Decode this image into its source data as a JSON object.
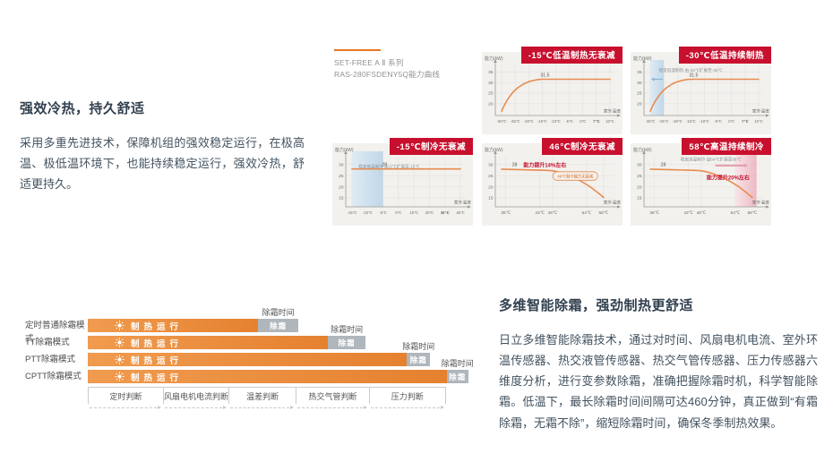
{
  "page": {
    "background": "#ffffff"
  },
  "colors": {
    "brand_red": "#C8102E",
    "accent_orange": "#E87722",
    "curve_orange": "#E78C4F",
    "chart_bg": "#F2F1EE",
    "grid": "#E0DED9",
    "axis": "#9C9A94",
    "tick_text": "#6b6b66",
    "bar_orange_start": "#F09B4F",
    "bar_orange_end": "#E5812F",
    "defrost_gray": "#AFB6BC",
    "band_blue": "#BCD6EA",
    "band_pink": "#EFB9C4",
    "text_dark": "#32414f",
    "text_body": "#42525f"
  },
  "intro": {
    "title": "强效冷热，持久舒适",
    "body": "采用多重先进技术，保障机组的强效稳定运行，在极高温、极低温环境下，也能持续稳定运行，强效冷热，舒适更持久。"
  },
  "series_label": {
    "line1": "SET-FREE A Ⅱ 系列",
    "line2": "RAS-280FSDENY5Q能力曲线"
  },
  "defrost": {
    "title": "多维智能除霜，强劲制热更舒适",
    "body": "日立多维智能除霜技术，通过对时间、风扇电机电流、室外环温传感器、热交液管传感器、热交气管传感器、压力传感器六维度分析，进行变参数除霜，准确把握除霜时机，科学智能除霜。低温下，最长除霜时间间隔可达460分钟，真正做到“有霜除霜，无霜不除”，缩短除霜时间，确保冬季制热效果。",
    "timeline": {
      "run_label": "制热运行",
      "defrost_label": "除霜",
      "time_label": "除霜时间",
      "rows": [
        {
          "mode": "定时普通除霜模式",
          "run": 0.448,
          "defrost": 0.107
        },
        {
          "mode": "TT除霜模式",
          "run": 0.633,
          "defrost": 0.098
        },
        {
          "mode": "PTT除霜模式",
          "run": 0.84,
          "defrost": 0.062
        },
        {
          "mode": "CPTT除霜模式",
          "run": 0.945,
          "defrost": 0.057
        }
      ],
      "axis_end": 0.943,
      "axis": [
        {
          "label": "定时判断",
          "w": 21.0
        },
        {
          "label": "风扇电机电流判断",
          "w": 18.3
        },
        {
          "label": "温差判断",
          "w": 18.8
        },
        {
          "label": "热交气管判断",
          "w": 20.4
        },
        {
          "label": "压力判断",
          "w": 21.5
        }
      ]
    }
  },
  "chart_data": [
    {
      "type": "line",
      "grid_pos": {
        "row": 0,
        "col": 1
      },
      "badge": "-15℃低温制热无衰减",
      "ylabel": "能力(kW)",
      "xlabel": "室外温度",
      "x_scale": "index",
      "xticks": [
        "-30℃",
        "-25℃",
        "-20℃",
        "-15℃",
        "-10℃",
        "-5℃",
        "0℃",
        "7℃",
        "10℃"
      ],
      "xtick_values": [
        -30,
        -25,
        -20,
        -15,
        -10,
        -5,
        0,
        7,
        10
      ],
      "bold_xticks": [
        "7℃"
      ],
      "ylim": [
        14.5,
        38
      ],
      "yticks": [
        35,
        30,
        25,
        20
      ],
      "series": [
        {
          "name": "制热能力",
          "x": [
            -30,
            -29,
            -28,
            -27,
            -26,
            -25,
            -24,
            -23,
            -22,
            -21,
            -20,
            -19,
            -18,
            -17,
            -16,
            -15,
            10
          ],
          "y": [
            16.5,
            19.3,
            21.6,
            23.5,
            25.1,
            26.4,
            27.5,
            28.4,
            29.2,
            29.8,
            30.3,
            30.7,
            31.0,
            31.25,
            31.4,
            31.5,
            31.5
          ]
        }
      ],
      "value_label": {
        "text": "31.5",
        "fx": 0.4,
        "v": 31.5
      }
    },
    {
      "type": "line",
      "grid_pos": {
        "row": 0,
        "col": 2
      },
      "badge": "-30℃低温持续制热",
      "ylabel": "能力(kW)",
      "xlabel": "室外温度",
      "x_scale": "index",
      "xticks": [
        "-30℃",
        "-25℃",
        "-20℃",
        "-15℃",
        "-10℃",
        "-5℃",
        "0℃",
        "7℃",
        "10℃"
      ],
      "xtick_values": [
        -30,
        -25,
        -20,
        -15,
        -10,
        -5,
        0,
        7,
        10
      ],
      "bold_xticks": [
        "7℃"
      ],
      "ylim": [
        14.5,
        38
      ],
      "yticks": [
        35,
        30,
        25,
        20
      ],
      "series": [
        {
          "name": "制热能力",
          "x": [
            -30,
            -29,
            -28,
            -27,
            -26,
            -25,
            -24,
            -23,
            -22,
            -21,
            -20,
            -19,
            -18,
            -17,
            -16,
            -15,
            10
          ],
          "y": [
            16.5,
            19.3,
            21.6,
            23.5,
            25.1,
            26.4,
            27.5,
            28.4,
            29.2,
            29.8,
            30.3,
            30.7,
            31.0,
            31.25,
            31.4,
            31.5,
            31.5
          ]
        }
      ],
      "value_label": {
        "text": "31.5",
        "fx": 0.4,
        "v": 31.5
      },
      "band": {
        "x0": -30,
        "x1": -25,
        "kind": "blue"
      },
      "notes": [
        {
          "text": "稳定低温制热 由-25℃扩展至-30℃",
          "fx": 0.08,
          "fy": 0.24,
          "color": "#8a9094",
          "size": 4.6
        }
      ],
      "arrows": [
        {
          "fx0": 0.115,
          "v0": 31.5,
          "fx1": 0.008,
          "v1": 31.5,
          "color": "#8FB3D1",
          "w": 1.2
        }
      ]
    },
    {
      "type": "line",
      "grid_pos": {
        "row": 1,
        "col": 0
      },
      "badge": "-15℃制冷无衰减",
      "ylabel": "能力(kW)",
      "xlabel": "室外温度",
      "x_scale": "index",
      "xticks": [
        "-15℃",
        "-10℃",
        "-5℃",
        "0℃",
        "10℃",
        "20℃",
        "35℃",
        "46℃"
      ],
      "xtick_values": [
        -15,
        -10,
        -5,
        0,
        10,
        20,
        35,
        46
      ],
      "bold_xticks": [
        "35℃"
      ],
      "ylim": [
        11,
        33.5
      ],
      "yticks": [
        30,
        25,
        20,
        15
      ],
      "series": [
        {
          "name": "制冷能力",
          "x": [
            -15,
            46
          ],
          "y": [
            28,
            28
          ]
        }
      ],
      "value_label": {
        "text": "28",
        "fx": 0.3,
        "v": 28
      },
      "band": {
        "x0": -15,
        "x1": -5,
        "kind": "blue"
      },
      "notes": [
        {
          "text": "稳定低温制冷 由-5℃扩展至-15℃",
          "fx": 0.06,
          "fy": 0.3,
          "color": "#8a9094",
          "size": 4.6
        }
      ]
    },
    {
      "type": "line",
      "grid_pos": {
        "row": 1,
        "col": 1
      },
      "badge": "46℃制冷无衰减",
      "ylabel": "能力(kW)",
      "xlabel": "室外温度",
      "x_scale": "value",
      "xlim": [
        34,
        59.5
      ],
      "xticks": [
        "35℃",
        "43℃",
        "46℃",
        "54℃",
        "58℃"
      ],
      "xtick_values": [
        35,
        43,
        46,
        54,
        58
      ],
      "ylim": [
        11,
        33.5
      ],
      "yticks": [
        30,
        25,
        20,
        15
      ],
      "series": [
        {
          "name": "制冷能力",
          "x": [
            34,
            36,
            38,
            40,
            42,
            44,
            46,
            47.5,
            49,
            50.5,
            52,
            53.5,
            55,
            56.5,
            58
          ],
          "y": [
            27.9,
            27.8,
            27.7,
            27.6,
            27.5,
            27.4,
            27.2,
            26.6,
            25.7,
            24.6,
            23.2,
            21.6,
            19.8,
            17.6,
            15.2
          ]
        }
      ],
      "value_label": {
        "text": "28",
        "fx": 0.12,
        "v": 28
      },
      "notes": [
        {
          "text": "能力提升14%左右",
          "fx": 0.2,
          "fy": 0.29,
          "color": "#C8102E",
          "bold": true,
          "size": 6
        }
      ],
      "pill": {
        "text": "46℃制冷能力无衰减",
        "fx": 0.68,
        "fy": 0.4
      }
    },
    {
      "type": "line",
      "grid_pos": {
        "row": 1,
        "col": 2
      },
      "badge": "58℃高温持续制冷",
      "ylabel": "能力(kW)",
      "xlabel": "室外温度",
      "x_scale": "value",
      "xlim": [
        34,
        59.5
      ],
      "xticks": [
        "35℃",
        "43℃",
        "46℃",
        "54℃",
        "58℃"
      ],
      "xtick_values": [
        35,
        43,
        46,
        54,
        58
      ],
      "ylim": [
        11,
        33.5
      ],
      "yticks": [
        30,
        25,
        20,
        15
      ],
      "series": [
        {
          "name": "制冷能力",
          "x": [
            34,
            36,
            38,
            40,
            42,
            44,
            46,
            47.5,
            49,
            50.5,
            52,
            53.5,
            55,
            56.5,
            58
          ],
          "y": [
            27.9,
            27.8,
            27.7,
            27.6,
            27.5,
            27.4,
            27.2,
            26.6,
            25.7,
            24.6,
            23.2,
            21.6,
            19.8,
            17.6,
            15.2
          ]
        }
      ],
      "value_label": {
        "text": "28",
        "fx": 0.12,
        "v": 28
      },
      "band": {
        "x0": 54,
        "x1": 59,
        "kind": "pink"
      },
      "notes": [
        {
          "text": "稳定高温制冷 由54℃扩展至58℃",
          "fx": 0.28,
          "fy": 0.21,
          "color": "#8a9094",
          "size": 4.6
        },
        {
          "text": "能力提升20%左右",
          "fx": 0.52,
          "fy": 0.44,
          "color": "#C8102E",
          "bold": true,
          "size": 6
        }
      ],
      "arrows": [
        {
          "fx0": 0.6,
          "fy0": 0.27,
          "fx1": 0.9,
          "fy1": 0.27,
          "color": "#E6A0AE",
          "w": 2.2
        }
      ]
    }
  ]
}
